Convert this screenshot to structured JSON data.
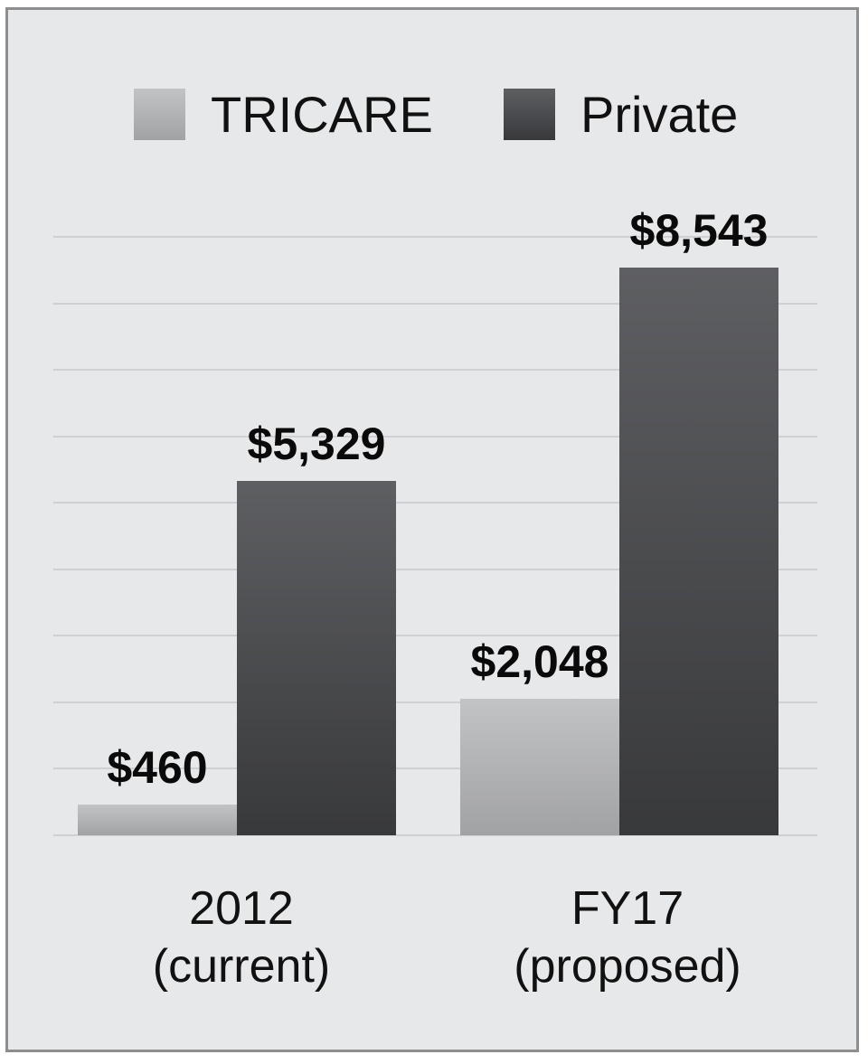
{
  "chart_data": {
    "type": "bar",
    "title": "",
    "xlabel": "",
    "ylabel": "",
    "ylim": [
      0,
      9000
    ],
    "grid": true,
    "gridline_step": 1000,
    "legend_position": "top",
    "categories": [
      "2012 (current)",
      "FY17 (proposed)"
    ],
    "category_lines": [
      [
        "2012",
        "(current)"
      ],
      [
        "FY17",
        "(proposed)"
      ]
    ],
    "series": [
      {
        "name": "TRICARE",
        "values": [
          460,
          2048
        ],
        "labels": [
          "$460",
          "$2,048"
        ],
        "color": "#b3b4b6"
      },
      {
        "name": "Private",
        "values": [
          5329,
          8543
        ],
        "labels": [
          "$5,329",
          "$8,543"
        ],
        "color": "#4a4b4d"
      }
    ]
  },
  "legend": {
    "items": [
      {
        "label": "TRICARE",
        "color": "#b3b4b6"
      },
      {
        "label": "Private",
        "color": "#4a4b4d"
      }
    ]
  },
  "colors": {
    "background": "#e7e8ea",
    "border": "#8d8e90",
    "gridline": "#cfd0d3"
  }
}
